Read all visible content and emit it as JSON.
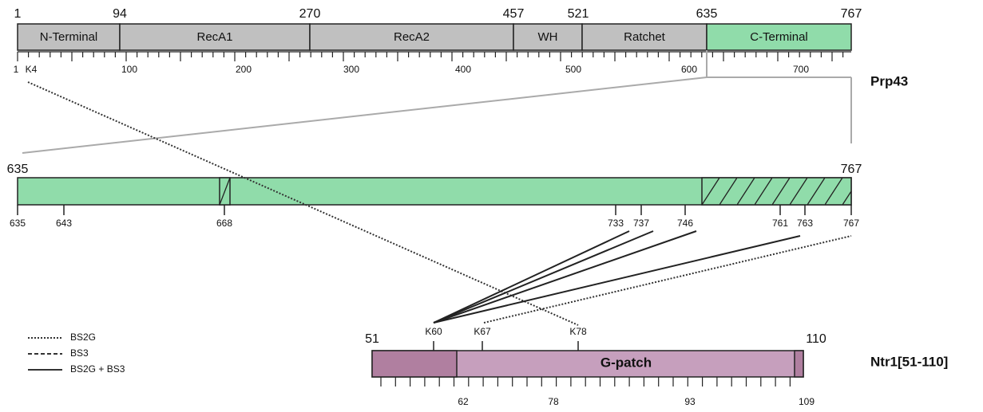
{
  "prp43": {
    "name": "Prp43",
    "domain_boundaries": [
      "1",
      "94",
      "270",
      "457",
      "521",
      "635",
      "767"
    ],
    "domains": [
      "N-Terminal",
      "RecA1",
      "RecA2",
      "WH",
      "Ratchet",
      "C-Terminal"
    ],
    "scale_labels": [
      "1",
      "K4",
      "100",
      "200",
      "300",
      "400",
      "500",
      "600",
      "700"
    ]
  },
  "c_terminal": {
    "range_labels": [
      "635",
      "767"
    ],
    "positions": [
      "635",
      "643",
      "668",
      "733",
      "737",
      "746",
      "761",
      "763",
      "767"
    ]
  },
  "ntr1": {
    "name": "Ntr1[51-110]",
    "range_labels": [
      "51",
      "110"
    ],
    "domain": "G-patch",
    "lysines": [
      "K60",
      "K67",
      "K78"
    ],
    "positions": [
      "62",
      "78",
      "93",
      "109"
    ]
  },
  "legend": [
    "BS2G",
    "BS3",
    "BS2G + BS3"
  ]
}
